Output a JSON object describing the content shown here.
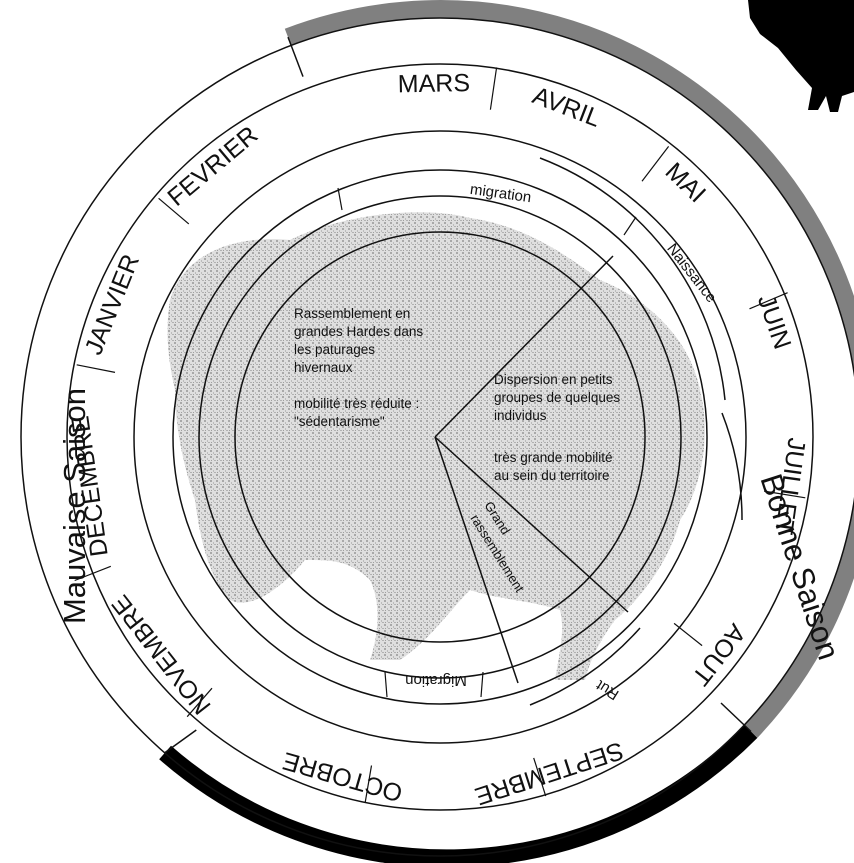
{
  "months": [
    "MARS",
    "AVRIL",
    "MAI",
    "JUIN",
    "JUILLET",
    "AOUT",
    "SEPTEMBRE",
    "OCTOBRE",
    "NOVEMBRE",
    "DECEMBRE",
    "JANVIER",
    "FEVRIER"
  ],
  "seasons": {
    "bad": "Mauvaise Saison",
    "good": "Bonne Saison"
  },
  "phases": {
    "migration_spring": "migration",
    "migration_autumn": "Migration",
    "birth": "Naissance",
    "rut": "Rut"
  },
  "sectors": {
    "winter": [
      "Rassemblement en",
      "grandes Hardes dans",
      "les paturages",
      "hivernaux",
      "",
      "mobilité très réduite :",
      "\"sédentarisme\""
    ],
    "summer": [
      "Dispersion en petits",
      "groupes de quelques",
      "individus",
      "",
      "très grande mobilité",
      "au sein du territoire"
    ],
    "gathering": [
      "Grand",
      "rassemblement"
    ]
  },
  "colors": {
    "good_season_band": "#808080",
    "bad_season_band": "#000000",
    "ink": "#111111",
    "bison_silhouette": "#bdbdbd"
  },
  "icons": {
    "background": "bison-silhouette-icon",
    "corner": "bison-corner-icon"
  }
}
